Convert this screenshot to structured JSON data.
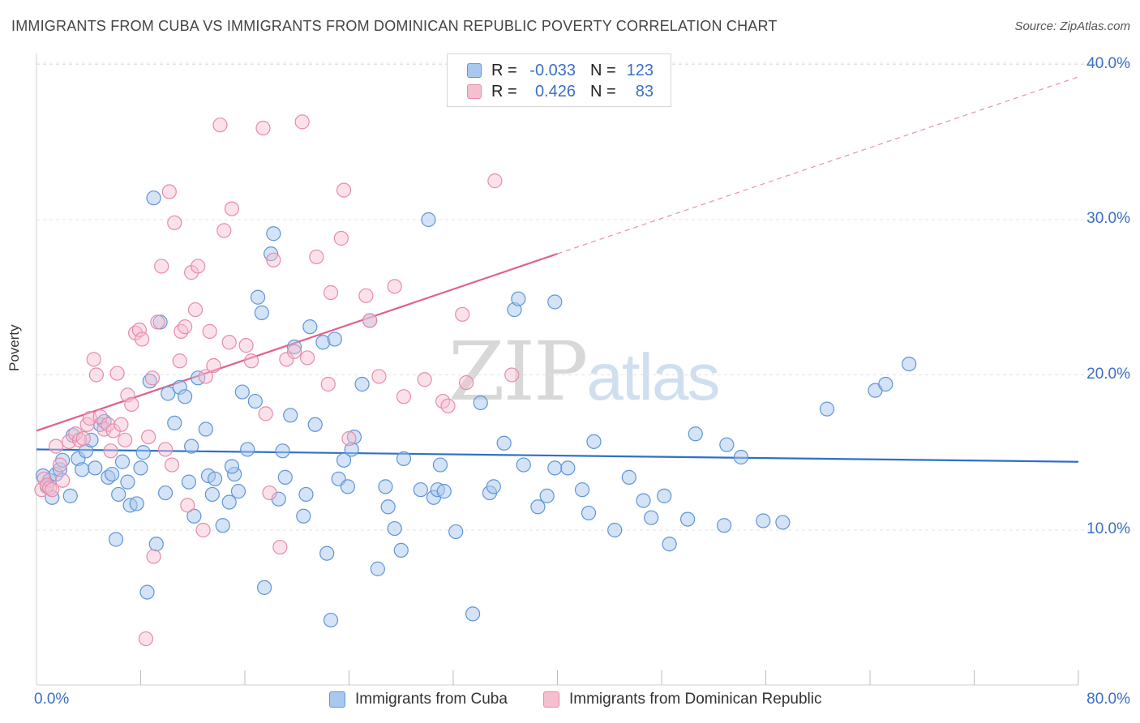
{
  "title": "IMMIGRANTS FROM CUBA VS IMMIGRANTS FROM DOMINICAN REPUBLIC POVERTY CORRELATION CHART",
  "source": "Source: ZipAtlas.com",
  "watermark": {
    "zip": "ZIP",
    "atlas": "atlas"
  },
  "legend_top": {
    "r_label": "R =",
    "n_label": "N =",
    "cuba": {
      "r": "-0.033",
      "n": "123"
    },
    "dom": {
      "r": "0.426",
      "n": "83"
    }
  },
  "legend_bottom": {
    "cuba": "Immigrants from Cuba",
    "dom": "Immigrants from Dominican Republic"
  },
  "colors": {
    "cuba_fill": "#a9c8ee",
    "cuba_stroke": "#5e95d8",
    "cuba_line": "#2f6fc9",
    "dom_fill": "#f6bfd0",
    "dom_stroke": "#e88aa8",
    "dom_line": "#e0608c",
    "axis_text": "#3a6fc4",
    "grid": "#e3e3e3"
  },
  "chart_data": {
    "type": "scatter",
    "title": "IMMIGRANTS FROM CUBA VS IMMIGRANTS FROM DOMINICAN REPUBLIC POVERTY CORRELATION CHART",
    "xlabel": "",
    "ylabel": "Poverty",
    "xlim": [
      0,
      80
    ],
    "ylim": [
      0,
      42
    ],
    "x_tick_labels": [
      "0.0%",
      "80.0%"
    ],
    "y_tick_labels": [
      "10.0%",
      "20.0%",
      "30.0%",
      "40.0%"
    ],
    "y_ticks": [
      10,
      20,
      30,
      40
    ],
    "grid": true,
    "series": [
      {
        "name": "Immigrants from Cuba",
        "trend": {
          "x": [
            0,
            80
          ],
          "y": [
            15.2,
            14.4
          ]
        },
        "points": [
          [
            0.5,
            13.5
          ],
          [
            0.8,
            12.8
          ],
          [
            1.0,
            13.2
          ],
          [
            1.2,
            12.1
          ],
          [
            1.5,
            13.6
          ],
          [
            1.8,
            13.9
          ],
          [
            2.0,
            14.5
          ],
          [
            2.6,
            12.2
          ],
          [
            2.8,
            16.1
          ],
          [
            3.2,
            14.6
          ],
          [
            3.5,
            13.9
          ],
          [
            3.8,
            15.1
          ],
          [
            4.2,
            15.8
          ],
          [
            4.5,
            14.0
          ],
          [
            4.9,
            16.8
          ],
          [
            5.2,
            17.0
          ],
          [
            5.5,
            13.4
          ],
          [
            5.8,
            13.6
          ],
          [
            6.1,
            9.4
          ],
          [
            6.3,
            12.3
          ],
          [
            6.6,
            14.4
          ],
          [
            7.0,
            13.1
          ],
          [
            7.2,
            11.6
          ],
          [
            7.7,
            11.7
          ],
          [
            8.0,
            14.0
          ],
          [
            8.5,
            6.0
          ],
          [
            8.7,
            19.6
          ],
          [
            9.0,
            31.4
          ],
          [
            9.2,
            9.1
          ],
          [
            9.5,
            23.4
          ],
          [
            9.9,
            12.4
          ],
          [
            10.1,
            18.8
          ],
          [
            10.6,
            16.9
          ],
          [
            11.0,
            19.2
          ],
          [
            11.4,
            18.6
          ],
          [
            11.7,
            13.1
          ],
          [
            11.9,
            15.4
          ],
          [
            12.1,
            10.9
          ],
          [
            12.4,
            19.8
          ],
          [
            13.0,
            16.5
          ],
          [
            13.2,
            13.5
          ],
          [
            13.5,
            12.3
          ],
          [
            13.7,
            13.3
          ],
          [
            14.3,
            10.3
          ],
          [
            14.8,
            11.8
          ],
          [
            15.2,
            13.6
          ],
          [
            15.5,
            12.5
          ],
          [
            15.8,
            18.9
          ],
          [
            16.2,
            15.2
          ],
          [
            16.8,
            18.3
          ],
          [
            17.0,
            25.0
          ],
          [
            17.3,
            24.0
          ],
          [
            17.5,
            6.3
          ],
          [
            18.0,
            27.8
          ],
          [
            18.2,
            29.1
          ],
          [
            18.6,
            12.0
          ],
          [
            18.9,
            15.1
          ],
          [
            19.1,
            13.4
          ],
          [
            19.5,
            17.4
          ],
          [
            19.8,
            21.8
          ],
          [
            20.5,
            10.9
          ],
          [
            20.7,
            12.3
          ],
          [
            21.0,
            23.1
          ],
          [
            21.4,
            16.8
          ],
          [
            22.0,
            22.1
          ],
          [
            22.3,
            8.5
          ],
          [
            22.6,
            4.2
          ],
          [
            22.9,
            22.3
          ],
          [
            23.2,
            13.3
          ],
          [
            23.6,
            14.5
          ],
          [
            23.9,
            12.8
          ],
          [
            24.2,
            15.2
          ],
          [
            24.4,
            16.0
          ],
          [
            25.0,
            19.4
          ],
          [
            25.6,
            23.5
          ],
          [
            26.2,
            7.5
          ],
          [
            26.8,
            12.8
          ],
          [
            27.5,
            10.1
          ],
          [
            28.0,
            8.7
          ],
          [
            28.2,
            14.6
          ],
          [
            29.5,
            12.6
          ],
          [
            30.1,
            30.0
          ],
          [
            30.5,
            12.1
          ],
          [
            30.8,
            12.6
          ],
          [
            31.0,
            14.2
          ],
          [
            31.3,
            12.5
          ],
          [
            32.2,
            9.9
          ],
          [
            33.5,
            4.6
          ],
          [
            34.1,
            18.2
          ],
          [
            34.8,
            12.4
          ],
          [
            35.1,
            12.8
          ],
          [
            35.9,
            15.6
          ],
          [
            36.7,
            24.2
          ],
          [
            37.0,
            24.9
          ],
          [
            37.4,
            14.2
          ],
          [
            38.5,
            11.5
          ],
          [
            39.2,
            12.2
          ],
          [
            39.8,
            24.7
          ],
          [
            39.8,
            14.0
          ],
          [
            40.8,
            14.0
          ],
          [
            41.9,
            12.6
          ],
          [
            42.4,
            11.1
          ],
          [
            42.8,
            15.7
          ],
          [
            44.4,
            10.0
          ],
          [
            45.5,
            13.4
          ],
          [
            46.6,
            11.9
          ],
          [
            47.2,
            10.8
          ],
          [
            48.2,
            12.2
          ],
          [
            48.6,
            9.1
          ],
          [
            50.0,
            10.7
          ],
          [
            50.6,
            16.2
          ],
          [
            52.8,
            10.3
          ],
          [
            53.0,
            15.5
          ],
          [
            54.1,
            14.7
          ],
          [
            55.8,
            10.6
          ],
          [
            57.3,
            10.5
          ],
          [
            60.7,
            17.8
          ],
          [
            64.4,
            19.0
          ],
          [
            65.2,
            19.4
          ],
          [
            67.0,
            20.7
          ],
          [
            8.2,
            15.0
          ],
          [
            15.0,
            14.1
          ],
          [
            27.0,
            11.5
          ]
        ]
      },
      {
        "name": "Immigrants from Dominican Republic",
        "trend": {
          "x": [
            0,
            40
          ],
          "y": [
            16.4,
            27.8
          ]
        },
        "trend_extension": {
          "x": [
            40,
            80
          ],
          "y": [
            27.8,
            39.2
          ]
        },
        "points": [
          [
            0.4,
            12.6
          ],
          [
            0.6,
            13.3
          ],
          [
            0.8,
            12.9
          ],
          [
            1.0,
            12.7
          ],
          [
            1.2,
            12.6
          ],
          [
            1.5,
            15.4
          ],
          [
            1.8,
            14.2
          ],
          [
            2.0,
            13.2
          ],
          [
            2.5,
            15.7
          ],
          [
            3.0,
            16.2
          ],
          [
            3.3,
            15.8
          ],
          [
            3.6,
            15.9
          ],
          [
            3.9,
            16.8
          ],
          [
            4.1,
            17.2
          ],
          [
            4.4,
            21.0
          ],
          [
            4.6,
            20.0
          ],
          [
            4.9,
            17.3
          ],
          [
            5.2,
            16.5
          ],
          [
            5.5,
            16.8
          ],
          [
            5.7,
            15.1
          ],
          [
            5.9,
            16.4
          ],
          [
            6.2,
            20.1
          ],
          [
            6.5,
            16.8
          ],
          [
            6.8,
            15.8
          ],
          [
            7.0,
            18.7
          ],
          [
            7.3,
            18.1
          ],
          [
            7.6,
            22.7
          ],
          [
            7.9,
            22.9
          ],
          [
            8.1,
            22.3
          ],
          [
            8.4,
            3.0
          ],
          [
            8.6,
            16.0
          ],
          [
            8.9,
            19.8
          ],
          [
            9.0,
            8.3
          ],
          [
            9.3,
            23.4
          ],
          [
            9.6,
            27.0
          ],
          [
            9.9,
            15.2
          ],
          [
            10.2,
            31.8
          ],
          [
            10.4,
            14.2
          ],
          [
            10.6,
            29.8
          ],
          [
            11.0,
            20.9
          ],
          [
            11.1,
            22.8
          ],
          [
            11.4,
            23.1
          ],
          [
            11.6,
            11.6
          ],
          [
            11.9,
            26.6
          ],
          [
            12.2,
            24.2
          ],
          [
            12.4,
            27.0
          ],
          [
            12.8,
            10.0
          ],
          [
            13.0,
            19.9
          ],
          [
            13.3,
            22.8
          ],
          [
            13.6,
            20.6
          ],
          [
            14.1,
            36.1
          ],
          [
            14.4,
            29.3
          ],
          [
            14.8,
            22.1
          ],
          [
            15.0,
            30.7
          ],
          [
            16.1,
            21.9
          ],
          [
            16.5,
            20.9
          ],
          [
            17.4,
            35.9
          ],
          [
            17.6,
            17.5
          ],
          [
            17.9,
            12.4
          ],
          [
            18.2,
            27.4
          ],
          [
            18.7,
            8.9
          ],
          [
            19.2,
            21.0
          ],
          [
            19.8,
            21.5
          ],
          [
            20.4,
            36.3
          ],
          [
            20.8,
            21.1
          ],
          [
            21.5,
            27.6
          ],
          [
            22.4,
            19.4
          ],
          [
            22.6,
            25.3
          ],
          [
            23.4,
            28.8
          ],
          [
            23.6,
            31.9
          ],
          [
            24.0,
            15.9
          ],
          [
            25.3,
            25.1
          ],
          [
            25.6,
            23.5
          ],
          [
            26.3,
            19.9
          ],
          [
            27.5,
            25.7
          ],
          [
            28.2,
            18.6
          ],
          [
            29.8,
            19.7
          ],
          [
            31.2,
            18.3
          ],
          [
            31.6,
            18.0
          ],
          [
            32.7,
            23.9
          ],
          [
            33.0,
            19.5
          ],
          [
            35.2,
            32.5
          ],
          [
            36.5,
            20.0
          ]
        ]
      }
    ]
  }
}
